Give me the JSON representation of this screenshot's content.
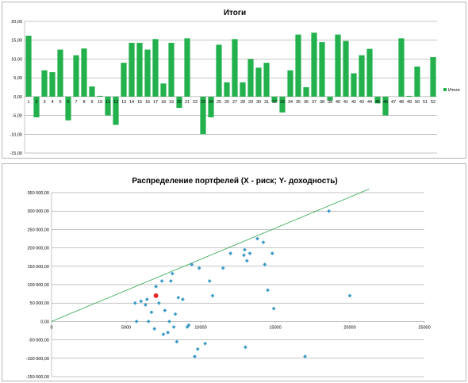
{
  "chart_data": [
    {
      "type": "bar",
      "title": "Итоги",
      "categories": [
        "1",
        "2",
        "3",
        "4",
        "5",
        "6",
        "7",
        "8",
        "9",
        "10",
        "11",
        "12",
        "13",
        "14",
        "15",
        "16",
        "17",
        "18",
        "19",
        "20",
        "21",
        "22",
        "23",
        "24",
        "25",
        "26",
        "27",
        "28",
        "29",
        "30",
        "31",
        "32",
        "33",
        "34",
        "35",
        "36",
        "37",
        "38",
        "39",
        "40",
        "41",
        "42",
        "43",
        "44",
        "45",
        "46",
        "47",
        "48",
        "49",
        "50",
        "51",
        "52"
      ],
      "series": [
        {
          "name": "Итоги",
          "color": "#22b14c",
          "values": [
            16.2,
            -5.5,
            7.0,
            6.5,
            12.5,
            -6.3,
            11.0,
            12.8,
            2.7,
            0.2,
            -5.0,
            -7.5,
            9.0,
            14.3,
            14.3,
            12.5,
            15.3,
            3.5,
            14.3,
            -3.0,
            15.5,
            0.0,
            -10.0,
            -5.5,
            13.8,
            3.8,
            15.3,
            3.8,
            10.0,
            7.7,
            9.0,
            -1.5,
            -4.2,
            7.0,
            16.5,
            2.5,
            17.0,
            14.5,
            -1.0,
            16.5,
            14.8,
            6.2,
            11.0,
            12.7,
            -1.8,
            -5.0,
            0.0,
            15.5,
            0.2,
            8.0,
            0.0,
            10.5
          ]
        }
      ],
      "ylim": [
        -15,
        20
      ],
      "y_ticks": [
        "-15,00",
        "-10,00",
        "-5,00",
        "0,00",
        "5,00",
        "10,00",
        "15,00",
        "20,00"
      ],
      "legend_position": "right",
      "grid": true
    },
    {
      "type": "scatter",
      "title": "Распределение портфелей (X - риск; Y- доходность)",
      "xlim": [
        0,
        25000
      ],
      "ylim": [
        -150000,
        350000
      ],
      "x_ticks": [
        "0",
        "5000",
        "10000",
        "15000",
        "20000",
        "25000"
      ],
      "y_ticks": [
        "-150 000,00",
        "-100 000,00",
        "-50 000,00",
        "0,00",
        "50 000,00",
        "100 000,00",
        "150 000,00",
        "200 000,00",
        "250 000,00",
        "300 000,00",
        "350 000,00"
      ],
      "grid": true,
      "series": [
        {
          "color": "#3b9bc6",
          "points": [
            [
              5600,
              50000
            ],
            [
              6000,
              55000
            ],
            [
              5700,
              0
            ],
            [
              6300,
              45000
            ],
            [
              6400,
              60000
            ],
            [
              6500,
              0
            ],
            [
              6700,
              25000
            ],
            [
              6900,
              -20000
            ],
            [
              7000,
              95000
            ],
            [
              7200,
              50000
            ],
            [
              7400,
              110000
            ],
            [
              7500,
              -35000
            ],
            [
              7600,
              30000
            ],
            [
              7800,
              -30000
            ],
            [
              7900,
              0
            ],
            [
              8000,
              110000
            ],
            [
              8100,
              130000
            ],
            [
              8200,
              -15000
            ],
            [
              8300,
              20000
            ],
            [
              8400,
              -55000
            ],
            [
              8500,
              65000
            ],
            [
              8800,
              60000
            ],
            [
              9100,
              -15000
            ],
            [
              9200,
              -10000
            ],
            [
              9400,
              155000
            ],
            [
              9600,
              -95000
            ],
            [
              9800,
              -75000
            ],
            [
              9900,
              145000
            ],
            [
              10300,
              -60000
            ],
            [
              10600,
              110000
            ],
            [
              10800,
              70000
            ],
            [
              11500,
              145000
            ],
            [
              12000,
              185000
            ],
            [
              12900,
              180000
            ],
            [
              12950,
              195000
            ],
            [
              13000,
              -70000
            ],
            [
              13100,
              165000
            ],
            [
              13300,
              185000
            ],
            [
              13800,
              225000
            ],
            [
              14200,
              215000
            ],
            [
              14300,
              155000
            ],
            [
              14500,
              85000
            ],
            [
              14800,
              185000
            ],
            [
              14900,
              35000
            ],
            [
              17000,
              -95000
            ],
            [
              18600,
              300000
            ],
            [
              20000,
              70000
            ]
          ]
        },
        {
          "color": "#e8262a",
          "points": [
            [
              7000,
              70000
            ]
          ]
        }
      ],
      "trendline": [
        [
          0,
          0
        ],
        [
          21300,
          360000
        ]
      ]
    }
  ]
}
